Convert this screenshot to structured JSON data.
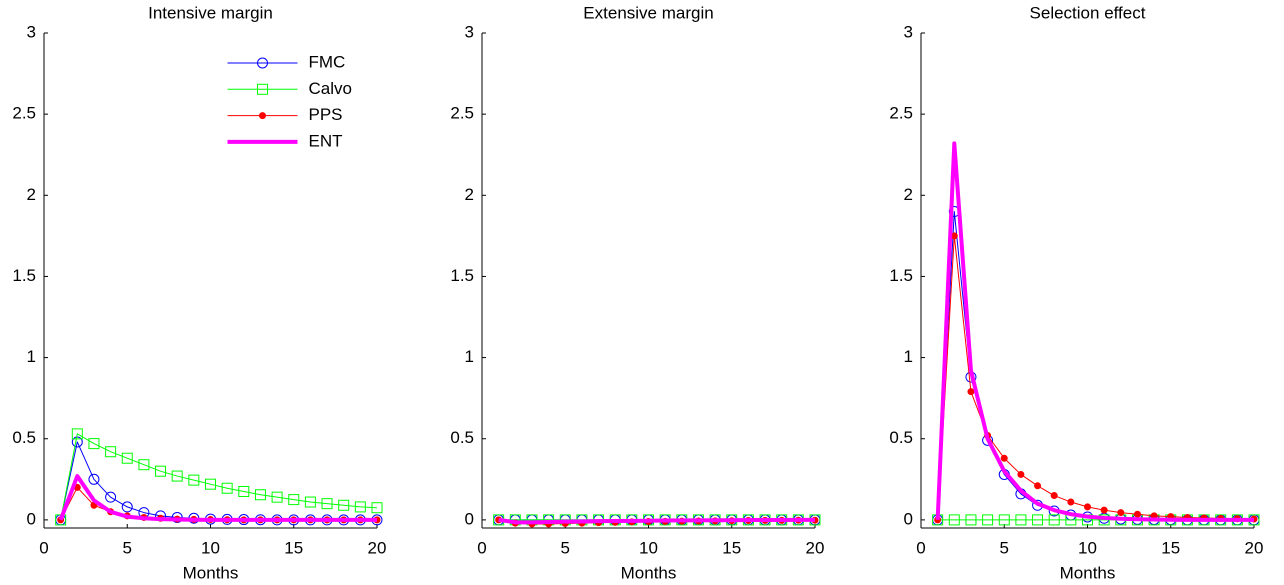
{
  "chart_data": [
    {
      "type": "line",
      "title": "Intensive margin",
      "xlabel": "Months",
      "x": [
        1,
        2,
        3,
        4,
        5,
        6,
        7,
        8,
        9,
        10,
        11,
        12,
        13,
        14,
        15,
        16,
        17,
        18,
        19,
        20
      ],
      "xlim": [
        0,
        20
      ],
      "xticks": [
        0,
        5,
        10,
        15,
        20
      ],
      "ylim": [
        -0.05,
        3
      ],
      "yticks": [
        0,
        0.5,
        1,
        1.5,
        2,
        2.5,
        3
      ],
      "legend": "upper center",
      "series": [
        {
          "name": "FMC",
          "color": "#0000ff",
          "marker": "circle",
          "linewidth": 1,
          "values": [
            0,
            0.48,
            0.25,
            0.14,
            0.08,
            0.045,
            0.025,
            0.015,
            0.01,
            0.005,
            0.003,
            0.002,
            0.001,
            0,
            0,
            0,
            0,
            0,
            0,
            0
          ]
        },
        {
          "name": "Calvo",
          "color": "#00ff00",
          "marker": "square",
          "linewidth": 1,
          "values": [
            0,
            0.53,
            0.47,
            0.42,
            0.38,
            0.34,
            0.3,
            0.27,
            0.245,
            0.22,
            0.195,
            0.175,
            0.155,
            0.14,
            0.125,
            0.11,
            0.1,
            0.09,
            0.08,
            0.075
          ]
        },
        {
          "name": "PPS",
          "color": "#ff0000",
          "marker": "dot",
          "linewidth": 1,
          "values": [
            0,
            0.2,
            0.09,
            0.05,
            0.025,
            0.015,
            0.01,
            0.005,
            0.003,
            0.002,
            0.001,
            0,
            0,
            0,
            0,
            0,
            0,
            0,
            0,
            0
          ]
        },
        {
          "name": "ENT",
          "color": "#ff00ff",
          "marker": "none",
          "linewidth": 4,
          "values": [
            0,
            0.27,
            0.12,
            0.05,
            0.02,
            0.01,
            0.005,
            0.002,
            0.001,
            0,
            0,
            0,
            0,
            0,
            0,
            0,
            0,
            0,
            0,
            0
          ]
        }
      ]
    },
    {
      "type": "line",
      "title": "Extensive margin",
      "xlabel": "Months",
      "x": [
        1,
        2,
        3,
        4,
        5,
        6,
        7,
        8,
        9,
        10,
        11,
        12,
        13,
        14,
        15,
        16,
        17,
        18,
        19,
        20
      ],
      "xlim": [
        0,
        20
      ],
      "xticks": [
        0,
        5,
        10,
        15,
        20
      ],
      "ylim": [
        -0.05,
        3
      ],
      "yticks": [
        0,
        0.5,
        1,
        1.5,
        2,
        2.5,
        3
      ],
      "series": [
        {
          "color": "#0000ff",
          "marker": "circle",
          "linewidth": 1,
          "values": [
            0,
            0,
            0,
            0,
            0,
            0,
            0,
            0,
            0,
            0,
            0,
            0,
            0,
            0,
            0,
            0,
            0,
            0,
            0,
            0
          ]
        },
        {
          "color": "#00ff00",
          "marker": "square",
          "linewidth": 1,
          "values": [
            0,
            0,
            0,
            0,
            0,
            0,
            0,
            0,
            0,
            0,
            0,
            0,
            0,
            0,
            0,
            0,
            0,
            0,
            0,
            0
          ]
        },
        {
          "color": "#ff0000",
          "marker": "dot",
          "linewidth": 1,
          "values": [
            0,
            -0.02,
            -0.025,
            -0.025,
            -0.022,
            -0.02,
            -0.017,
            -0.015,
            -0.012,
            -0.01,
            -0.009,
            -0.008,
            -0.007,
            -0.006,
            -0.005,
            -0.004,
            -0.003,
            -0.003,
            -0.002,
            -0.002
          ]
        },
        {
          "color": "#ff00ff",
          "marker": "none",
          "linewidth": 4,
          "values": [
            0,
            -0.015,
            -0.015,
            -0.013,
            -0.011,
            -0.01,
            -0.008,
            -0.007,
            -0.006,
            -0.005,
            -0.004,
            -0.003,
            -0.003,
            -0.002,
            -0.002,
            -0.001,
            -0.001,
            -0.001,
            0,
            0
          ]
        }
      ]
    },
    {
      "type": "line",
      "title": "Selection effect",
      "xlabel": "Months",
      "x": [
        1,
        2,
        3,
        4,
        5,
        6,
        7,
        8,
        9,
        10,
        11,
        12,
        13,
        14,
        15,
        16,
        17,
        18,
        19,
        20
      ],
      "xlim": [
        0,
        20
      ],
      "xticks": [
        0,
        5,
        10,
        15,
        20
      ],
      "ylim": [
        -0.05,
        3
      ],
      "yticks": [
        0,
        0.5,
        1,
        1.5,
        2,
        2.5,
        3
      ],
      "series": [
        {
          "color": "#0000ff",
          "marker": "circle",
          "linewidth": 1,
          "values": [
            0,
            1.9,
            0.88,
            0.49,
            0.28,
            0.16,
            0.09,
            0.055,
            0.03,
            0.018,
            0.01,
            0.005,
            0.003,
            0.002,
            0.001,
            0,
            0,
            0,
            0,
            0
          ]
        },
        {
          "color": "#00ff00",
          "marker": "square",
          "linewidth": 1,
          "values": [
            0,
            0,
            0,
            0,
            0,
            0,
            0,
            0,
            0,
            0,
            0,
            0,
            0,
            0,
            0,
            0,
            0,
            0,
            0,
            0
          ]
        },
        {
          "color": "#ff0000",
          "marker": "dot",
          "linewidth": 1,
          "values": [
            0,
            1.75,
            0.79,
            0.52,
            0.38,
            0.28,
            0.21,
            0.15,
            0.11,
            0.08,
            0.06,
            0.045,
            0.035,
            0.025,
            0.02,
            0.015,
            0.012,
            0.009,
            0.007,
            0.005
          ]
        },
        {
          "color": "#ff00ff",
          "marker": "none",
          "linewidth": 4,
          "values": [
            0,
            2.32,
            0.92,
            0.5,
            0.3,
            0.18,
            0.1,
            0.06,
            0.035,
            0.02,
            0.012,
            0.007,
            0.004,
            0.002,
            0.001,
            0,
            0,
            0,
            0,
            0
          ]
        }
      ]
    }
  ]
}
